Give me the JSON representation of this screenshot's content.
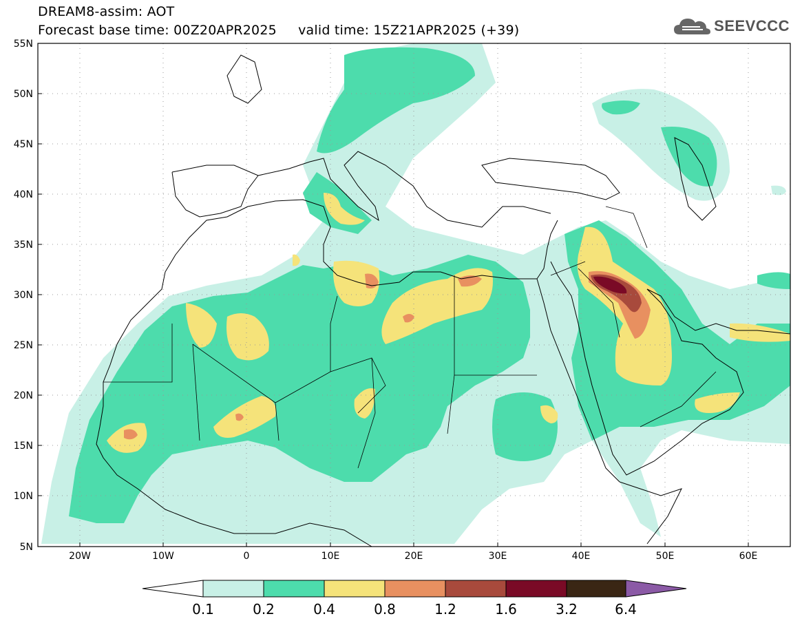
{
  "header": {
    "title_line1": "DREAM8-assim: AOT",
    "title_line2": "Forecast base time: 00Z20APR2025     valid time: 15Z21APR2025 (+39)"
  },
  "logo": {
    "text": "SEEVCCC",
    "icon": "cloud-logo-icon",
    "color": "#555555"
  },
  "map": {
    "lat_labels": [
      "55N",
      "50N",
      "45N",
      "40N",
      "35N",
      "30N",
      "25N",
      "20N",
      "15N",
      "10N",
      "5N"
    ],
    "lon_labels": [
      "20W",
      "10W",
      "0",
      "10E",
      "20E",
      "30E",
      "40E",
      "50E",
      "60E"
    ],
    "lat_range": [
      5,
      55
    ],
    "lon_range": [
      -25,
      65
    ],
    "grid": "dotted"
  },
  "legend": {
    "labels": [
      "0.1",
      "0.2",
      "0.4",
      "0.8",
      "1.2",
      "1.6",
      "3.2",
      "6.4"
    ],
    "colors": [
      "#ffffff",
      "#c8f0e6",
      "#4ddcac",
      "#f5e37a",
      "#e89060",
      "#a84a3c",
      "#7a0a26",
      "#3a2614",
      "#8b5aa6"
    ]
  }
}
